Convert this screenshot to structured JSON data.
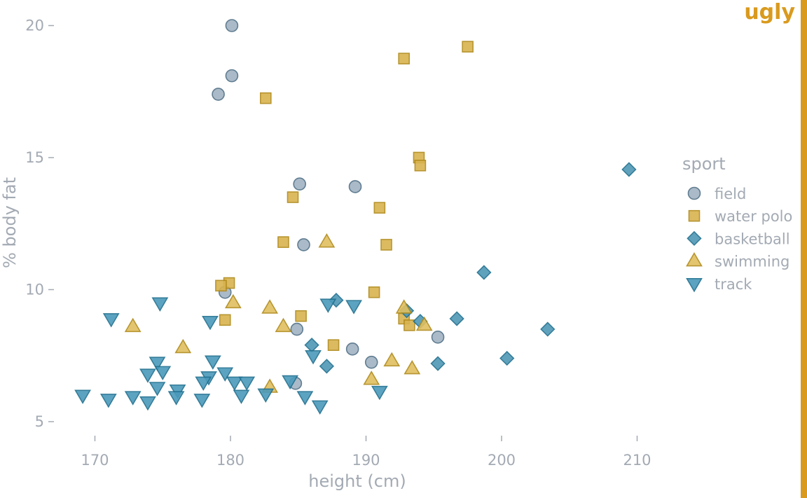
{
  "badge": "ugly",
  "colors": {
    "field": "#a3b3c3",
    "water_polo": "#d9b34f",
    "basketball": "#4f97b5",
    "swimming": "#e0bf60",
    "track": "#4b9abb",
    "stroke_blue": "#1f6f8f",
    "stroke_gold": "#b08a1a",
    "stroke_gray": "#4f6f86",
    "badge": "#d99a1e",
    "axis_text": "#a3aab3"
  },
  "chart_data": {
    "type": "scatter",
    "xlabel": "height (cm)",
    "ylabel": "% body fat",
    "xlim": [
      166.5,
      221
    ],
    "ylim": [
      4.0,
      21.0
    ],
    "xticks": [
      "170",
      "180",
      "190",
      "200",
      "210"
    ],
    "yticks": [
      "5",
      "10",
      "15",
      "20"
    ],
    "grid": false,
    "legend": {
      "title": "sport",
      "placement": "right",
      "entries": [
        "field",
        "water polo",
        "basketball",
        "swimming",
        "track"
      ]
    },
    "series": [
      {
        "name": "field",
        "marker": "circle",
        "points": [
          [
            180.1,
            20.0
          ],
          [
            180.1,
            18.1
          ],
          [
            179.1,
            17.4
          ],
          [
            185.1,
            14.0
          ],
          [
            189.2,
            13.9
          ],
          [
            185.4,
            11.7
          ],
          [
            179.6,
            9.9
          ],
          [
            184.9,
            8.5
          ],
          [
            195.3,
            8.2
          ],
          [
            189.0,
            7.75
          ],
          [
            190.4,
            7.25
          ],
          [
            184.8,
            6.45
          ]
        ]
      },
      {
        "name": "water polo",
        "marker": "square",
        "points": [
          [
            197.5,
            19.2
          ],
          [
            192.8,
            18.75
          ],
          [
            182.6,
            17.25
          ],
          [
            193.9,
            15.0
          ],
          [
            194.0,
            14.7
          ],
          [
            191.0,
            13.1
          ],
          [
            184.6,
            13.5
          ],
          [
            183.9,
            11.8
          ],
          [
            191.5,
            11.7
          ],
          [
            179.9,
            10.25
          ],
          [
            179.3,
            10.15
          ],
          [
            190.6,
            9.9
          ],
          [
            185.2,
            9.0
          ],
          [
            179.6,
            8.85
          ],
          [
            192.8,
            8.9
          ],
          [
            193.2,
            8.65
          ],
          [
            187.6,
            7.9
          ]
        ]
      },
      {
        "name": "basketball",
        "marker": "diamond",
        "points": [
          [
            209.4,
            14.55
          ],
          [
            198.7,
            10.65
          ],
          [
            187.8,
            9.6
          ],
          [
            193.0,
            9.2
          ],
          [
            196.7,
            8.9
          ],
          [
            194.0,
            8.8
          ],
          [
            203.4,
            8.5
          ],
          [
            186.0,
            7.9
          ],
          [
            200.4,
            7.4
          ],
          [
            195.3,
            7.2
          ],
          [
            187.1,
            7.1
          ]
        ]
      },
      {
        "name": "swimming",
        "marker": "triangle-up",
        "points": [
          [
            187.1,
            11.8
          ],
          [
            180.2,
            9.5
          ],
          [
            182.9,
            9.3
          ],
          [
            192.8,
            9.3
          ],
          [
            172.8,
            8.6
          ],
          [
            183.9,
            8.6
          ],
          [
            194.3,
            8.65
          ],
          [
            176.5,
            7.8
          ],
          [
            191.9,
            7.3
          ],
          [
            193.4,
            7.0
          ],
          [
            190.4,
            6.6
          ],
          [
            182.9,
            6.3
          ]
        ]
      },
      {
        "name": "track",
        "marker": "triangle-down",
        "points": [
          [
            174.8,
            9.5
          ],
          [
            171.2,
            8.9
          ],
          [
            178.5,
            8.8
          ],
          [
            187.2,
            9.45
          ],
          [
            189.1,
            9.4
          ],
          [
            174.6,
            7.25
          ],
          [
            178.7,
            7.3
          ],
          [
            173.9,
            6.8
          ],
          [
            175.0,
            6.9
          ],
          [
            179.6,
            6.85
          ],
          [
            178.4,
            6.7
          ],
          [
            186.1,
            7.5
          ],
          [
            178.0,
            6.5
          ],
          [
            180.3,
            6.5
          ],
          [
            181.2,
            6.5
          ],
          [
            184.4,
            6.55
          ],
          [
            174.6,
            6.3
          ],
          [
            176.1,
            6.2
          ],
          [
            169.1,
            6.0
          ],
          [
            171.0,
            5.85
          ],
          [
            172.8,
            5.95
          ],
          [
            173.9,
            5.75
          ],
          [
            176.0,
            5.95
          ],
          [
            177.9,
            5.85
          ],
          [
            180.8,
            6.0
          ],
          [
            182.6,
            6.05
          ],
          [
            185.5,
            5.95
          ],
          [
            186.6,
            5.6
          ],
          [
            191.0,
            6.15
          ]
        ]
      }
    ]
  }
}
